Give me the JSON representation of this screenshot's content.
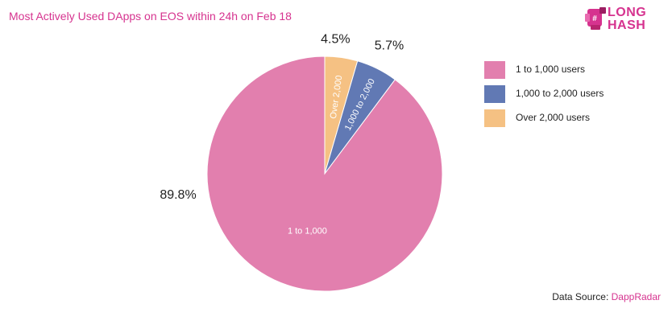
{
  "header": {
    "title": "Most Actively Used DApps on EOS within 24h on Feb 18",
    "logo_line1": "LONG",
    "logo_line2": "HASH"
  },
  "source": {
    "prefix": "Data Source: ",
    "name": "DappRadar"
  },
  "colors": {
    "accent": "#d6338f",
    "slice_pink": "#e27fae",
    "slice_blue": "#6179b4",
    "slice_orange": "#f5c183"
  },
  "chart_data": {
    "type": "pie",
    "title": "Most Actively Used DApps on EOS within 24h on Feb 18",
    "legend_position": "right",
    "slices": [
      {
        "legend": "1 to 1,000 users",
        "label": "1 to 1,000",
        "value": 89.8,
        "value_label": "89.8%",
        "color": "#e27fae"
      },
      {
        "legend": "1,000 to 2,000 users",
        "label": "1,000 to 2,000",
        "value": 5.7,
        "value_label": "5.7%",
        "color": "#6179b4"
      },
      {
        "legend": "Over 2,000 users",
        "label": "Over 2,000",
        "value": 4.5,
        "value_label": "4.5%",
        "color": "#f5c183"
      }
    ]
  }
}
